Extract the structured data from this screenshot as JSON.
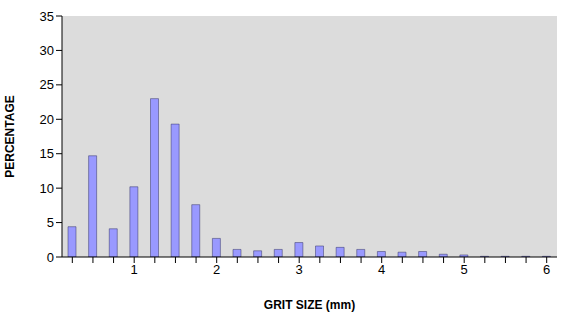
{
  "chart_data": {
    "type": "bar",
    "x_label": "GRIT SIZE (mm)",
    "y_label": "PERCENTAGE",
    "categories": [
      null,
      null,
      null,
      "1",
      null,
      null,
      null,
      "2",
      null,
      null,
      null,
      "3",
      null,
      null,
      null,
      "4",
      null,
      null,
      null,
      "5",
      null,
      null,
      null,
      "6"
    ],
    "values": [
      4.4,
      14.7,
      4.1,
      10.2,
      23,
      19.3,
      7.6,
      2.7,
      1.1,
      0.9,
      1.1,
      2.1,
      1.6,
      1.4,
      1.1,
      0.8,
      0.7,
      0.8,
      0.4,
      0.3,
      0.1,
      0.1,
      0.1,
      0.1
    ],
    "color": "#9999ff",
    "ylim": [
      0,
      35
    ],
    "yticks": [
      0,
      5,
      10,
      15,
      20,
      25,
      30,
      35
    ],
    "grid": false
  }
}
